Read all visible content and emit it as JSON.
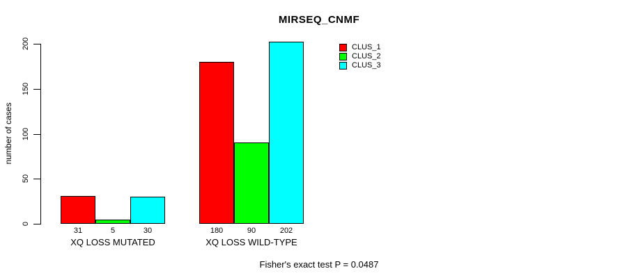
{
  "chart_data": {
    "type": "bar",
    "title": "MIRSEQ_CNMF",
    "ylabel": "number of cases",
    "xlabel": "",
    "categories": [
      "XQ LOSS MUTATED",
      "XQ LOSS WILD-TYPE"
    ],
    "series": [
      {
        "name": "CLUS_1",
        "color": "#ff0000",
        "values": [
          31,
          180
        ]
      },
      {
        "name": "CLUS_2",
        "color": "#00ff00",
        "values": [
          5,
          90
        ]
      },
      {
        "name": "CLUS_3",
        "color": "#00ffff",
        "values": [
          30,
          202
        ]
      }
    ],
    "yticks": [
      0,
      50,
      100,
      150,
      200
    ],
    "ylim": [
      0,
      205
    ],
    "grid": false,
    "bar_value_labels": true,
    "legend_position": "top-right",
    "annotation": "Fisher's exact test P = 0.0487",
    "background_color": "#ffffff",
    "bar_border_color": "#000000",
    "axis_color": "#000000"
  }
}
